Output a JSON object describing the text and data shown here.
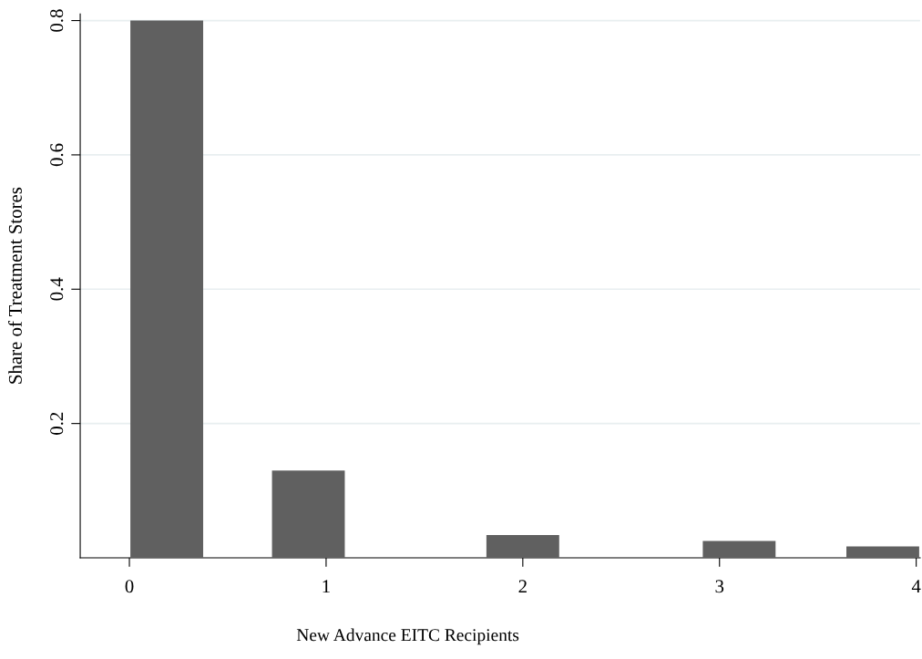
{
  "chart_data": {
    "type": "bar",
    "xlabel": "New Advance EITC Recipients",
    "ylabel": "Share of Treatment Stores",
    "x": [
      0.19,
      0.91,
      2.0,
      3.1,
      3.83
    ],
    "values": [
      0.8,
      0.13,
      0.034,
      0.025,
      0.017
    ],
    "color": "#606060",
    "xlim": [
      -0.25,
      4.02
    ],
    "xticks": [
      0,
      1,
      2,
      3,
      4
    ],
    "ylim": [
      0,
      0.81
    ],
    "yticks": [
      0.2,
      0.4,
      0.6,
      0.8
    ],
    "grid": "y"
  }
}
